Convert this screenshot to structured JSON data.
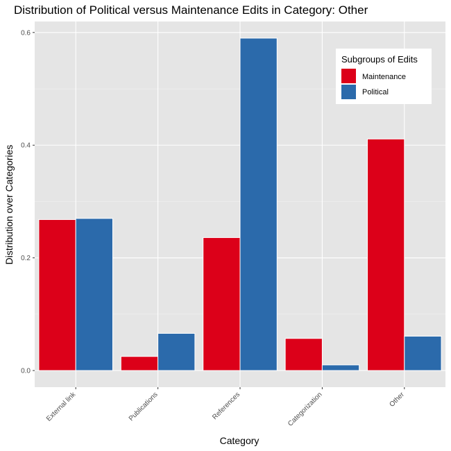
{
  "chart_data": {
    "type": "bar",
    "title": "Distribution of Political versus Maintenance Edits in Category: Other",
    "xlabel": "Category",
    "ylabel": "Distribution over Categories",
    "categories": [
      "External link",
      "Publications",
      "References",
      "Categorization",
      "Other"
    ],
    "series": [
      {
        "name": "Maintenance",
        "color": "#DC0019",
        "values": [
          0.268,
          0.025,
          0.236,
          0.057,
          0.411
        ]
      },
      {
        "name": "Political",
        "color": "#2B6AAB",
        "values": [
          0.27,
          0.066,
          0.59,
          0.01,
          0.061
        ]
      }
    ],
    "ylim": [
      -0.0295,
      0.6195
    ],
    "yticks": [
      0.0,
      0.2,
      0.4,
      0.6
    ],
    "ytick_labels": [
      "0.0",
      "0.2",
      "0.4",
      "0.6"
    ],
    "legend": {
      "title": "Subgroups of Edits",
      "position": "top-right"
    },
    "grid": true,
    "panel_background": "#E5E5E5"
  }
}
